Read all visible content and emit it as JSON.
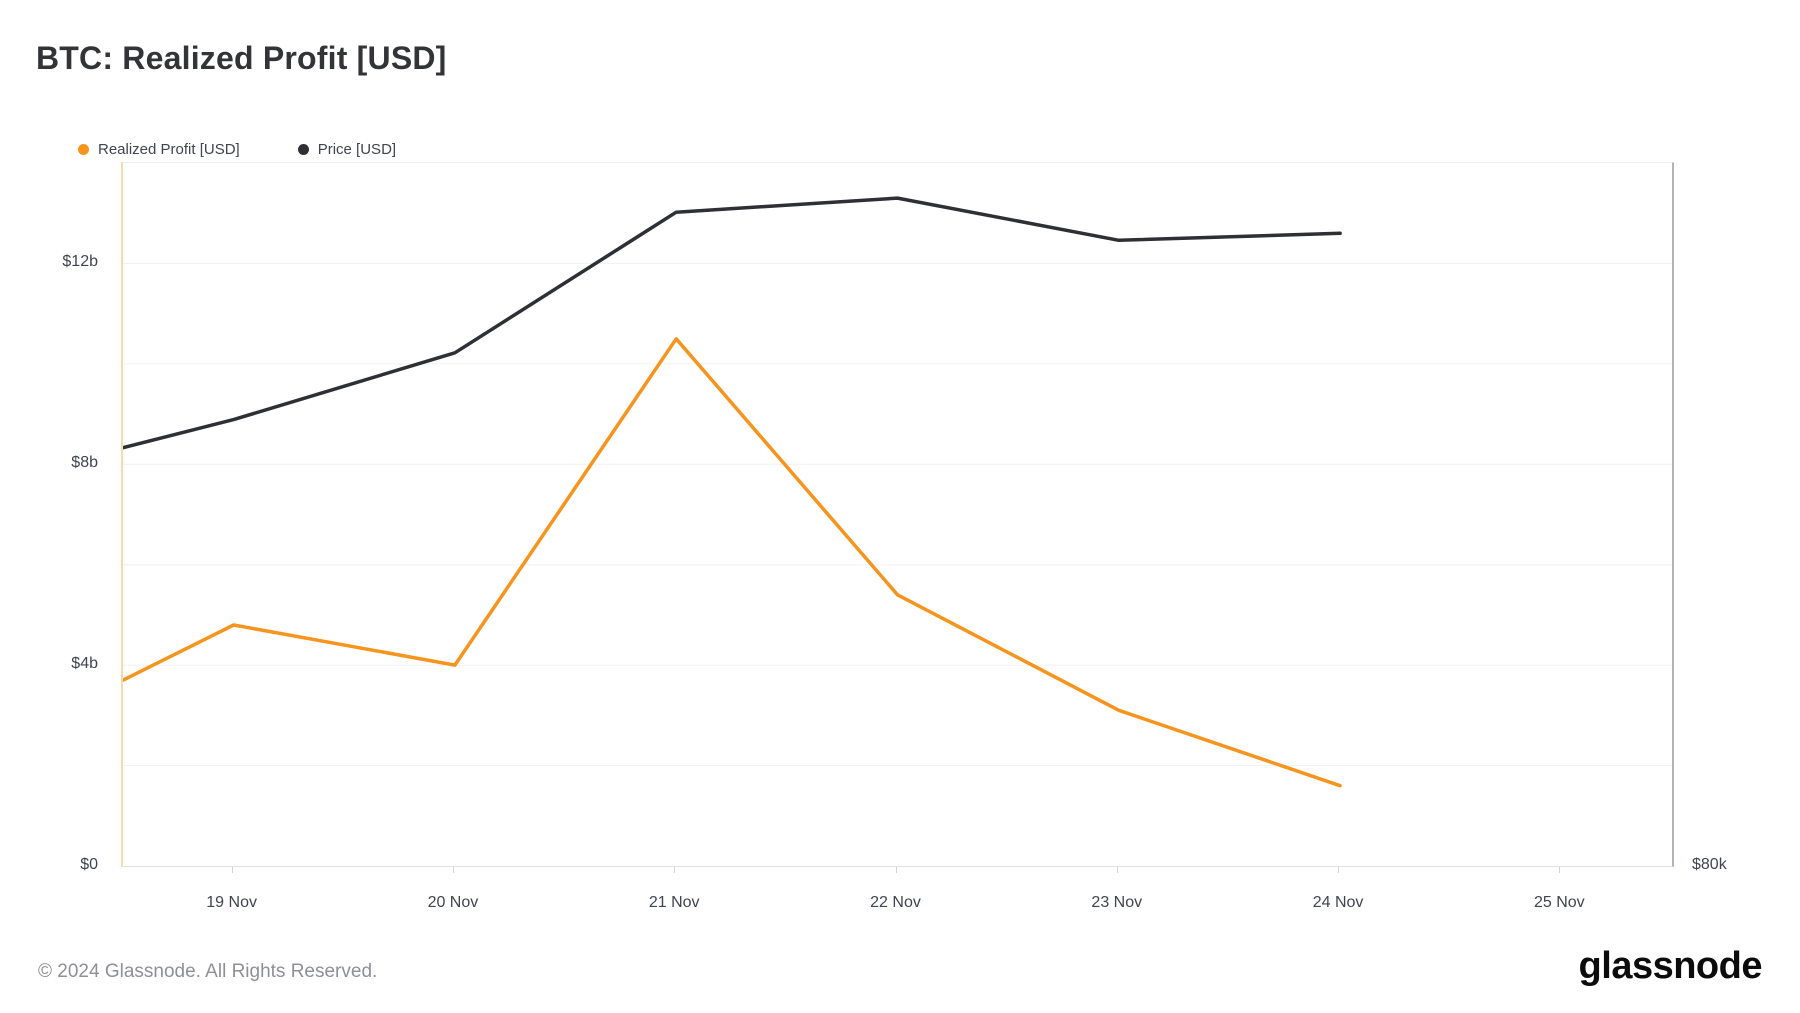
{
  "page": {
    "title": "BTC: Realized Profit [USD]",
    "footer_copyright": "© 2024 Glassnode. All Rights Reserved.",
    "brand_logo": "glassnode"
  },
  "legend": {
    "items": [
      {
        "label": "Realized Profit [USD]",
        "color": "#f7941d"
      },
      {
        "label": "Price [USD]",
        "color": "#2e3036"
      }
    ]
  },
  "colors": {
    "realized_profit_line": "#f7941d",
    "price_line": "#2e3036",
    "gridline": "#f1f1f3",
    "plot_left_border": "#fbd9ab",
    "plot_right_border": "#b3b3b6",
    "axis_text": "#3e4450",
    "title_text": "#333438",
    "footer_text": "#8f9094"
  },
  "chart_data": {
    "type": "line",
    "title": "BTC: Realized Profit [USD]",
    "x_unit": "date (Nov 2024)",
    "xlim_days": [
      18.5,
      25.5
    ],
    "x_days": [
      18.5,
      19,
      20,
      21,
      22,
      23,
      24
    ],
    "x_tick_days": [
      19,
      20,
      21,
      22,
      23,
      24,
      25
    ],
    "x_tick_labels": [
      "19 Nov",
      "20 Nov",
      "21 Nov",
      "22 Nov",
      "23 Nov",
      "24 Nov",
      "25 Nov"
    ],
    "grid": "horizontal-only",
    "legend_position": "top-left",
    "series": [
      {
        "name": "Realized Profit [USD]",
        "axis": "left",
        "unit": "billion USD",
        "color": "#f7941d",
        "values": [
          3.7,
          4.8,
          4.0,
          10.5,
          5.4,
          3.1,
          1.6
        ]
      },
      {
        "name": "Price [USD]",
        "axis": "right",
        "unit": "thousand USD",
        "color": "#2e3036",
        "values": [
          91.9,
          92.7,
          94.6,
          98.6,
          99.0,
          97.8,
          98.0
        ]
      }
    ],
    "left_axis": {
      "lim": [
        0,
        14
      ],
      "unit": "billion USD",
      "ticks": [
        {
          "v": 0,
          "label": "$0"
        },
        {
          "v": 4,
          "label": "$4b"
        },
        {
          "v": 8,
          "label": "$8b"
        },
        {
          "v": 12,
          "label": "$12b"
        }
      ],
      "grid_values": [
        2,
        4,
        6,
        8,
        10,
        12
      ]
    },
    "right_axis": {
      "lim": [
        80,
        100
      ],
      "unit": "thousand USD",
      "ticks": [
        {
          "v": 80,
          "label": "$80k"
        }
      ]
    }
  }
}
